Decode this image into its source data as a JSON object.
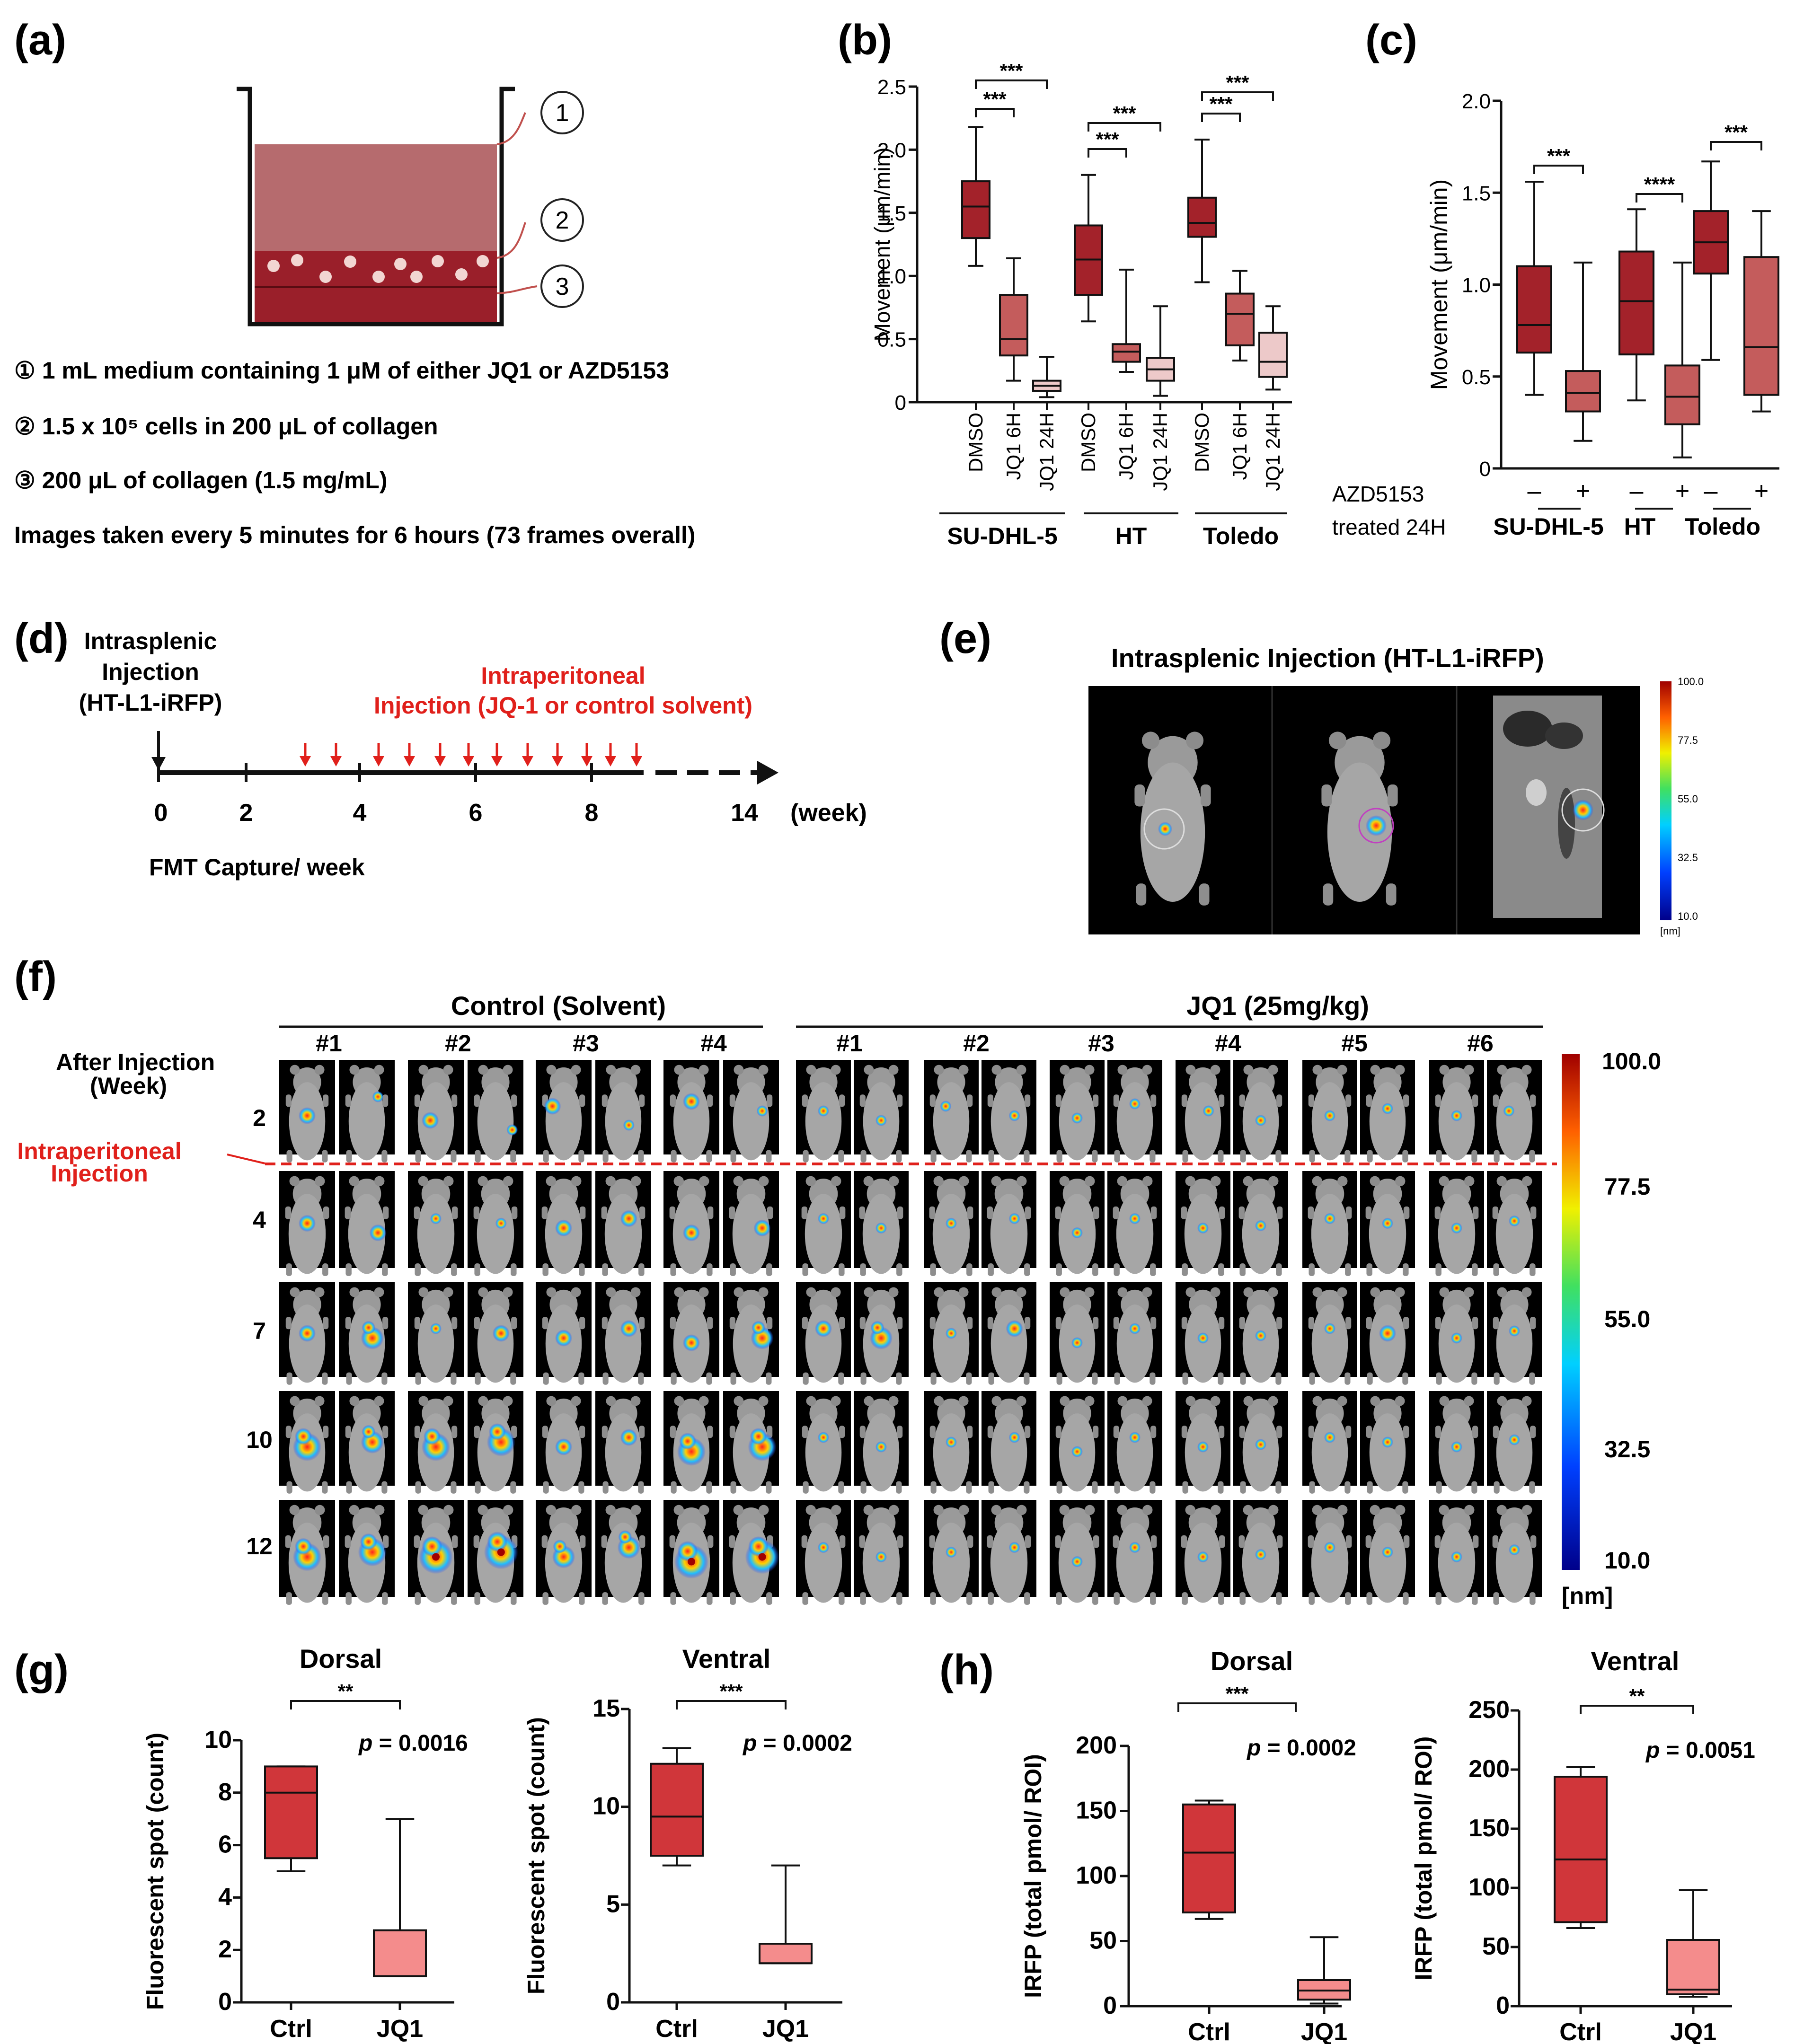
{
  "panel_labels": {
    "a": "(a)",
    "b": "(b)",
    "c": "(c)",
    "d": "(d)",
    "e": "(e)",
    "f": "(f)",
    "g": "(g)",
    "h": "(h)"
  },
  "colors": {
    "dark": "#a3222a",
    "mid": "#c45c5c",
    "light": "#edc9c9",
    "bright": "#d0363a",
    "pink": "#f48c8c",
    "accent_red": "#e0201b"
  },
  "panel_a": {
    "markers": [
      "1",
      "2",
      "3"
    ],
    "lines": [
      "① 1 mL medium containing 1 μM of either JQ1 or AZD5153",
      "② 1.5 x 10⁵ cells in 200 μL of collagen",
      "③ 200 μL of collagen (1.5 mg/mL)",
      "Images taken every 5 minutes for 6 hours (73 frames overall)"
    ]
  },
  "panel_d": {
    "intrasplenic": [
      "Intrasplenic",
      "Injection",
      "(HT-L1-iRFP)"
    ],
    "intraperitoneal": [
      "Intraperitoneal",
      "Injection (JQ-1 or control solvent)"
    ],
    "ticks": [
      "0",
      "2",
      "4",
      "6",
      "8",
      "14"
    ],
    "unit": "(week)",
    "fmt": "FMT Capture/ week"
  },
  "panel_e": {
    "title": "Intrasplenic Injection  (HT-L1-iRFP)",
    "scale": [
      "100.0",
      "77.5",
      "55.0",
      "32.5",
      "10.0"
    ],
    "unit": "[nm]"
  },
  "panel_f": {
    "groups": [
      "Control (Solvent)",
      "JQ1 (25mg/kg)"
    ],
    "control_ids": [
      "#1",
      "#2",
      "#3",
      "#4"
    ],
    "jq1_ids": [
      "#1",
      "#2",
      "#3",
      "#4",
      "#5",
      "#6"
    ],
    "row_header": [
      "After Injection",
      "(Week)"
    ],
    "weeks": [
      "2",
      "4",
      "7",
      "10",
      "12"
    ],
    "ip_label": [
      "Intraperitoneal",
      "Injection"
    ],
    "scale": [
      "100.0",
      "77.5",
      "55.0",
      "32.5",
      "10.0"
    ],
    "unit": "[nm]"
  },
  "chart_data": [
    {
      "id": "b",
      "type": "box",
      "ylabel": "Movement (μm/min)",
      "ylim": [
        0,
        2.5
      ],
      "yticks": [
        "0",
        "0.5",
        "1.0",
        "1.5",
        "2.0",
        "2.5"
      ],
      "categories": [
        "DMSO",
        "JQ1 6H",
        "JQ1 24H",
        "DMSO",
        "JQ1 6H",
        "JQ1 24H",
        "DMSO",
        "JQ1 6H",
        "JQ1 24H"
      ],
      "groups": [
        "SU-DHL-5",
        "HT",
        "Toledo"
      ],
      "boxes": [
        {
          "min": 1.08,
          "q1": 1.3,
          "median": 1.55,
          "q3": 1.75,
          "max": 2.18,
          "fill": "dark"
        },
        {
          "min": 0.17,
          "q1": 0.37,
          "median": 0.5,
          "q3": 0.85,
          "max": 1.14,
          "fill": "mid"
        },
        {
          "min": 0.04,
          "q1": 0.09,
          "median": 0.13,
          "q3": 0.17,
          "max": 0.36,
          "fill": "light"
        },
        {
          "min": 0.64,
          "q1": 0.85,
          "median": 1.13,
          "q3": 1.4,
          "max": 1.8,
          "fill": "dark"
        },
        {
          "min": 0.24,
          "q1": 0.32,
          "median": 0.4,
          "q3": 0.46,
          "max": 1.05,
          "fill": "mid"
        },
        {
          "min": 0.05,
          "q1": 0.17,
          "median": 0.26,
          "q3": 0.35,
          "max": 0.76,
          "fill": "light"
        },
        {
          "min": 0.95,
          "q1": 1.31,
          "median": 1.42,
          "q3": 1.62,
          "max": 2.08,
          "fill": "dark"
        },
        {
          "min": 0.33,
          "q1": 0.45,
          "median": 0.7,
          "q3": 0.86,
          "max": 1.04,
          "fill": "mid"
        },
        {
          "min": 0.1,
          "q1": 0.2,
          "median": 0.32,
          "q3": 0.55,
          "max": 0.76,
          "fill": "light"
        }
      ],
      "annotations": [
        {
          "from": 0,
          "to": 1,
          "label": "***"
        },
        {
          "from": 0,
          "to": 2,
          "label": "***"
        },
        {
          "from": 3,
          "to": 4,
          "label": "***"
        },
        {
          "from": 3,
          "to": 5,
          "label": "***"
        },
        {
          "from": 6,
          "to": 7,
          "label": "***"
        },
        {
          "from": 6,
          "to": 8,
          "label": "***"
        }
      ]
    },
    {
      "id": "c",
      "type": "box",
      "ylabel": "Movement (μm/min)",
      "ylim": [
        0,
        2.0
      ],
      "yticks": [
        "0",
        "0.5",
        "1.0",
        "1.5",
        "2.0"
      ],
      "categories": [
        "–",
        "+",
        "–",
        "+",
        "–",
        "+"
      ],
      "groups": [
        "SU-DHL-5",
        "HT",
        "Toledo"
      ],
      "treatment": [
        "AZD5153",
        "treated 24H"
      ],
      "boxes": [
        {
          "min": 0.4,
          "q1": 0.63,
          "median": 0.78,
          "q3": 1.1,
          "max": 1.56,
          "fill": "dark"
        },
        {
          "min": 0.15,
          "q1": 0.31,
          "median": 0.41,
          "q3": 0.53,
          "max": 1.12,
          "fill": "mid"
        },
        {
          "min": 0.37,
          "q1": 0.62,
          "median": 0.91,
          "q3": 1.18,
          "max": 1.41,
          "fill": "dark"
        },
        {
          "min": 0.06,
          "q1": 0.24,
          "median": 0.39,
          "q3": 0.56,
          "max": 1.12,
          "fill": "mid"
        },
        {
          "min": 0.59,
          "q1": 1.06,
          "median": 1.23,
          "q3": 1.4,
          "max": 1.67,
          "fill": "dark"
        },
        {
          "min": 0.31,
          "q1": 0.4,
          "median": 0.66,
          "q3": 1.15,
          "max": 1.4,
          "fill": "mid"
        }
      ],
      "annotations": [
        {
          "from": 0,
          "to": 1,
          "label": "***"
        },
        {
          "from": 2,
          "to": 3,
          "label": "****"
        },
        {
          "from": 4,
          "to": 5,
          "label": "***"
        }
      ]
    },
    {
      "id": "g1",
      "type": "box",
      "title": "Dorsal",
      "ylabel": "Fluorescent spot (count)",
      "ylim": [
        0,
        10
      ],
      "yticks": [
        "0",
        "2",
        "4",
        "6",
        "8",
        "10"
      ],
      "categories": [
        "Ctrl",
        "JQ1"
      ],
      "boxes": [
        {
          "min": 5,
          "q1": 5.5,
          "median": 8,
          "q3": 9,
          "max": 9,
          "fill": "bright"
        },
        {
          "min": 1,
          "q1": 1,
          "median": 1,
          "q3": 2.75,
          "max": 7,
          "fill": "pink"
        }
      ],
      "annotations": [
        {
          "from": 0,
          "to": 1,
          "label": "**"
        }
      ],
      "p": "p = 0.0016"
    },
    {
      "id": "g2",
      "type": "box",
      "title": "Ventral",
      "ylabel": "Fluorescent spot (count)",
      "ylim": [
        0,
        15
      ],
      "yticks": [
        "0",
        "5",
        "10",
        "15"
      ],
      "categories": [
        "Ctrl",
        "JQ1"
      ],
      "boxes": [
        {
          "min": 7,
          "q1": 7.5,
          "median": 9.5,
          "q3": 12.2,
          "max": 13,
          "fill": "bright"
        },
        {
          "min": 2,
          "q1": 2,
          "median": 2,
          "q3": 3,
          "max": 7,
          "fill": "pink"
        }
      ],
      "annotations": [
        {
          "from": 0,
          "to": 1,
          "label": "***"
        }
      ],
      "p": "p = 0.0002"
    },
    {
      "id": "h1",
      "type": "box",
      "title": "Dorsal",
      "ylabel": "IRFP (total pmol/ ROI)",
      "ylim": [
        0,
        200
      ],
      "yticks": [
        "0",
        "50",
        "100",
        "150",
        "200"
      ],
      "categories": [
        "Ctrl",
        "JQ1"
      ],
      "boxes": [
        {
          "min": 67,
          "q1": 72,
          "median": 118,
          "q3": 155,
          "max": 158,
          "fill": "bright"
        },
        {
          "min": 2,
          "q1": 5,
          "median": 12,
          "q3": 20,
          "max": 53,
          "fill": "pink"
        }
      ],
      "annotations": [
        {
          "from": 0,
          "to": 1,
          "label": "***"
        }
      ],
      "p": "p = 0.0002"
    },
    {
      "id": "h2",
      "type": "box",
      "title": "Ventral",
      "ylabel": "IRFP (total pmol/ ROI)",
      "ylim": [
        0,
        250
      ],
      "yticks": [
        "0",
        "50",
        "100",
        "150",
        "200",
        "250"
      ],
      "categories": [
        "Ctrl",
        "JQ1"
      ],
      "boxes": [
        {
          "min": 66,
          "q1": 71,
          "median": 124,
          "q3": 194,
          "max": 202,
          "fill": "bright"
        },
        {
          "min": 8,
          "q1": 10,
          "median": 14,
          "q3": 56,
          "max": 98,
          "fill": "pink"
        }
      ],
      "annotations": [
        {
          "from": 0,
          "to": 1,
          "label": "**"
        }
      ],
      "p": "p = 0.0051"
    }
  ]
}
